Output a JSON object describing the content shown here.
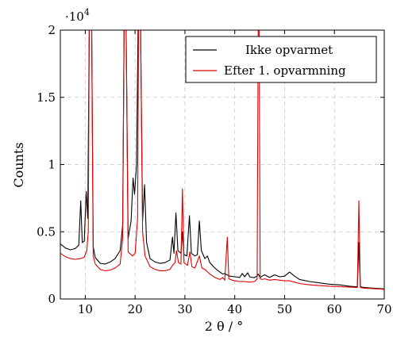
{
  "chart_data": {
    "type": "line",
    "xlabel": "2 θ / °",
    "ylabel": "Counts",
    "y_multiplier_label": "·10",
    "y_multiplier_exponent": "4",
    "xlim": [
      5,
      70
    ],
    "ylim": [
      0,
      20000
    ],
    "x_ticks": [
      10,
      20,
      30,
      40,
      50,
      60,
      70
    ],
    "y_ticks": [
      0,
      5000,
      10000,
      15000,
      20000
    ],
    "y_tick_labels": [
      "0",
      "0.5",
      "1",
      "1.5",
      "2"
    ],
    "grid": true,
    "legend_position": "top-right",
    "series": [
      {
        "name": "Ikke opvarmet",
        "color": "#000000",
        "points": [
          [
            5,
            4100
          ],
          [
            6,
            3800
          ],
          [
            7,
            3650
          ],
          [
            8,
            3750
          ],
          [
            8.7,
            4000
          ],
          [
            9.1,
            7300
          ],
          [
            9.4,
            4200
          ],
          [
            9.8,
            4300
          ],
          [
            10.2,
            8000
          ],
          [
            10.5,
            6000
          ],
          [
            10.8,
            20000
          ],
          [
            11.3,
            20000
          ],
          [
            11.6,
            3900
          ],
          [
            12,
            3100
          ],
          [
            13,
            2650
          ],
          [
            14,
            2600
          ],
          [
            15,
            2750
          ],
          [
            16,
            3000
          ],
          [
            17,
            3600
          ],
          [
            17.5,
            5500
          ],
          [
            17.8,
            20000
          ],
          [
            18.2,
            20000
          ],
          [
            18.6,
            4500
          ],
          [
            19.2,
            5800
          ],
          [
            19.6,
            9000
          ],
          [
            19.9,
            7800
          ],
          [
            20.3,
            10000
          ],
          [
            20.6,
            20000
          ],
          [
            21.1,
            20000
          ],
          [
            21.5,
            5800
          ],
          [
            21.9,
            8500
          ],
          [
            22.3,
            4200
          ],
          [
            23,
            3000
          ],
          [
            24,
            2750
          ],
          [
            25,
            2650
          ],
          [
            26,
            2700
          ],
          [
            27,
            2900
          ],
          [
            27.5,
            4600
          ],
          [
            27.8,
            3400
          ],
          [
            28.2,
            6400
          ],
          [
            28.6,
            3600
          ],
          [
            29.2,
            3400
          ],
          [
            29.5,
            5000
          ],
          [
            29.8,
            3300
          ],
          [
            30.4,
            3200
          ],
          [
            30.9,
            6200
          ],
          [
            31.3,
            3400
          ],
          [
            32,
            3200
          ],
          [
            32.5,
            3300
          ],
          [
            32.9,
            5800
          ],
          [
            33.3,
            3600
          ],
          [
            34,
            3000
          ],
          [
            34.5,
            3200
          ],
          [
            35,
            2700
          ],
          [
            36,
            2300
          ],
          [
            37,
            2000
          ],
          [
            37.6,
            1850
          ],
          [
            38,
            1900
          ],
          [
            38.4,
            1800
          ],
          [
            39,
            1700
          ],
          [
            40,
            1650
          ],
          [
            41,
            1600
          ],
          [
            41.5,
            1900
          ],
          [
            42,
            1650
          ],
          [
            42.6,
            1950
          ],
          [
            43,
            1650
          ],
          [
            43.5,
            1600
          ],
          [
            44,
            1600
          ],
          [
            44.4,
            1700
          ],
          [
            44.7,
            1850
          ],
          [
            45.1,
            1600
          ],
          [
            45.5,
            1700
          ],
          [
            46,
            1800
          ],
          [
            47,
            1600
          ],
          [
            48,
            1800
          ],
          [
            49,
            1650
          ],
          [
            50,
            1700
          ],
          [
            51,
            2000
          ],
          [
            52,
            1700
          ],
          [
            53,
            1450
          ],
          [
            55,
            1300
          ],
          [
            57,
            1200
          ],
          [
            59,
            1100
          ],
          [
            61,
            1050
          ],
          [
            63,
            950
          ],
          [
            64.6,
            900
          ],
          [
            64.9,
            4200
          ],
          [
            65.2,
            900
          ],
          [
            66,
            850
          ],
          [
            68,
            800
          ],
          [
            70,
            750
          ]
        ]
      },
      {
        "name": "Efter 1. opvarmning",
        "color": "#e00000",
        "points": [
          [
            5,
            3400
          ],
          [
            6,
            3150
          ],
          [
            7,
            3000
          ],
          [
            8,
            2950
          ],
          [
            9,
            3000
          ],
          [
            9.8,
            3100
          ],
          [
            10.3,
            3600
          ],
          [
            10.6,
            5000
          ],
          [
            10.8,
            20000
          ],
          [
            11.3,
            20000
          ],
          [
            11.6,
            3200
          ],
          [
            12,
            2600
          ],
          [
            13,
            2200
          ],
          [
            14,
            2100
          ],
          [
            15,
            2150
          ],
          [
            16,
            2300
          ],
          [
            17,
            2600
          ],
          [
            17.5,
            4500
          ],
          [
            17.8,
            20000
          ],
          [
            18.2,
            20000
          ],
          [
            18.6,
            3500
          ],
          [
            19.5,
            3200
          ],
          [
            20,
            3400
          ],
          [
            20.5,
            6000
          ],
          [
            20.7,
            20000
          ],
          [
            21.1,
            20000
          ],
          [
            21.5,
            5000
          ],
          [
            22,
            3200
          ],
          [
            23,
            2400
          ],
          [
            24,
            2200
          ],
          [
            25,
            2100
          ],
          [
            26,
            2100
          ],
          [
            27,
            2200
          ],
          [
            27.5,
            2500
          ],
          [
            28,
            2700
          ],
          [
            28.3,
            3600
          ],
          [
            28.7,
            2700
          ],
          [
            29.2,
            2600
          ],
          [
            29.5,
            8200
          ],
          [
            29.8,
            2700
          ],
          [
            30.5,
            2500
          ],
          [
            31,
            3500
          ],
          [
            31.4,
            2400
          ],
          [
            32,
            2300
          ],
          [
            32.9,
            3200
          ],
          [
            33.4,
            2300
          ],
          [
            34,
            2200
          ],
          [
            35,
            1850
          ],
          [
            36,
            1600
          ],
          [
            37,
            1450
          ],
          [
            37.6,
            1600
          ],
          [
            38,
            1400
          ],
          [
            38.5,
            4600
          ],
          [
            38.8,
            1500
          ],
          [
            39.5,
            1400
          ],
          [
            40,
            1350
          ],
          [
            41,
            1300
          ],
          [
            42,
            1300
          ],
          [
            43,
            1250
          ],
          [
            44,
            1300
          ],
          [
            44.5,
            1500
          ],
          [
            44.7,
            20000
          ],
          [
            44.9,
            20000
          ],
          [
            45.1,
            1500
          ],
          [
            45.5,
            1450
          ],
          [
            46,
            1500
          ],
          [
            47,
            1400
          ],
          [
            48,
            1450
          ],
          [
            49,
            1400
          ],
          [
            50,
            1350
          ],
          [
            51,
            1350
          ],
          [
            52,
            1250
          ],
          [
            53,
            1150
          ],
          [
            55,
            1050
          ],
          [
            57,
            1000
          ],
          [
            59,
            950
          ],
          [
            61,
            920
          ],
          [
            63,
            880
          ],
          [
            64.6,
            850
          ],
          [
            64.9,
            7300
          ],
          [
            65.2,
            850
          ],
          [
            66,
            800
          ],
          [
            68,
            760
          ],
          [
            70,
            720
          ]
        ]
      }
    ]
  }
}
